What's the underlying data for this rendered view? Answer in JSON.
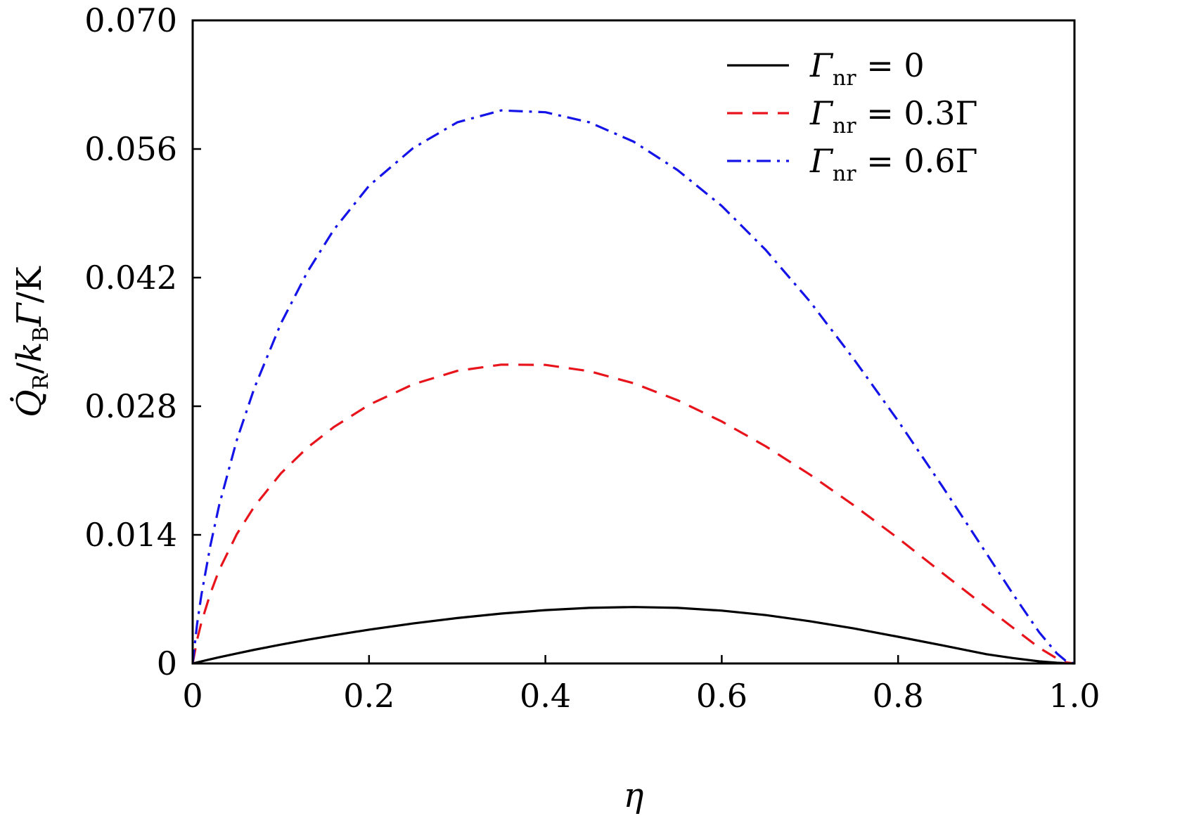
{
  "chart_data": {
    "type": "line",
    "xlabel": "η",
    "ylabel": "Q̇R/kBΓ/K",
    "ylabel_parts": {
      "main": "Q̇",
      "main_sub": "R",
      "sep1": "/",
      "k": "k",
      "k_sub": "B",
      "gamma": "Γ",
      "sep2": "/K"
    },
    "xlim": [
      0,
      1.0
    ],
    "ylim": [
      0,
      0.07
    ],
    "x_ticks": [
      0,
      0.2,
      0.4,
      0.6,
      0.8,
      1.0
    ],
    "x_tick_labels": [
      "0",
      "0.2",
      "0.4",
      "0.6",
      "0.8",
      "1.0"
    ],
    "y_ticks": [
      0,
      0.014,
      0.028,
      0.042,
      0.056,
      0.07
    ],
    "y_tick_labels": [
      "0",
      "0.014",
      "0.028",
      "0.042",
      "0.056",
      "0.070"
    ],
    "grid": false,
    "legend_position": "top-right",
    "x": [
      0,
      0.005,
      0.01,
      0.02,
      0.03,
      0.05,
      0.07,
      0.1,
      0.13,
      0.16,
      0.2,
      0.25,
      0.3,
      0.35,
      0.4,
      0.45,
      0.5,
      0.55,
      0.6,
      0.65,
      0.7,
      0.75,
      0.8,
      0.85,
      0.9,
      0.93,
      0.96,
      0.98,
      0.99,
      1.0
    ],
    "series": [
      {
        "legend_sym": "Γ",
        "legend_sub": "nr",
        "legend_eq": "= 0",
        "color": "#000000",
        "style": "solid",
        "values": [
          0,
          0.00011,
          0.00023,
          0.00045,
          0.00067,
          0.00109,
          0.00149,
          0.00205,
          0.00258,
          0.00307,
          0.00368,
          0.00435,
          0.00494,
          0.00543,
          0.00581,
          0.00605,
          0.00614,
          0.00605,
          0.00575,
          0.00526,
          0.0046,
          0.00381,
          0.00291,
          0.00197,
          0.00101,
          0.00059,
          0.00023,
          8e-05,
          3e-05,
          0
        ]
      },
      {
        "legend_sym": "Γ",
        "legend_sub": "nr",
        "legend_eq": "= 0.3Γ",
        "color": "#e8141c",
        "style": "dashed",
        "values": [
          0,
          0.00257,
          0.00449,
          0.0076,
          0.01015,
          0.01407,
          0.0171,
          0.02069,
          0.02349,
          0.02573,
          0.02815,
          0.03039,
          0.03185,
          0.03253,
          0.0325,
          0.03181,
          0.0305,
          0.02865,
          0.02634,
          0.02363,
          0.02056,
          0.0172,
          0.01363,
          0.00986,
          0.00612,
          0.00391,
          0.00171,
          0.00054,
          0.00013,
          0
        ]
      },
      {
        "legend_sym": "Γ",
        "legend_sub": "nr",
        "legend_eq": "= 0.6Γ",
        "color": "#1414e8",
        "style": "dashdot",
        "values": [
          0,
          0.0043,
          0.0075,
          0.0128,
          0.0172,
          0.0243,
          0.03,
          0.037,
          0.0426,
          0.0472,
          0.052,
          0.0561,
          0.0589,
          0.0602,
          0.06,
          0.0589,
          0.0568,
          0.0537,
          0.0498,
          0.045,
          0.0394,
          0.0331,
          0.0264,
          0.0193,
          0.012,
          0.0076,
          0.0034,
          0.0011,
          0.0003,
          0
        ]
      }
    ]
  }
}
